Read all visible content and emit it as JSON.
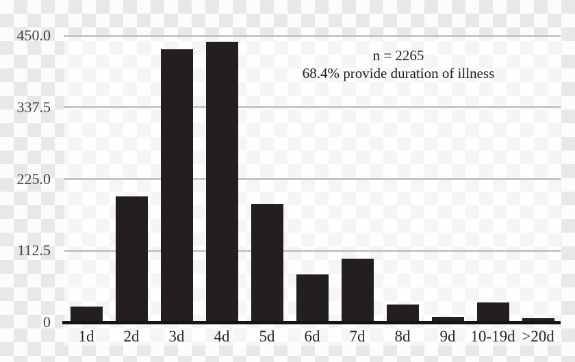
{
  "chart_data": {
    "type": "bar",
    "title": "",
    "xlabel": "",
    "ylabel": "",
    "categories": [
      "1d",
      "2d",
      "3d",
      "4d",
      "5d",
      "6d",
      "7d",
      "8d",
      "9d",
      "10-19d",
      ">20d"
    ],
    "values": [
      24,
      197,
      427,
      439,
      185,
      74,
      99,
      27,
      8,
      30,
      5
    ],
    "ylim": [
      0,
      450
    ],
    "yticks": [
      {
        "value": 450,
        "label": "450.0"
      },
      {
        "value": 337.5,
        "label": "337.5"
      },
      {
        "value": 225,
        "label": "225.0"
      },
      {
        "value": 112.5,
        "label": "112.5"
      },
      {
        "value": 0,
        "label": "0"
      }
    ],
    "grid": "horizontal-only",
    "legend": "none",
    "annotations": {
      "line1": "n = 2265",
      "line2": "68.4% provide duration of illness"
    },
    "colors": {
      "bar": "#231f20",
      "gridline": "#c6c6c6",
      "axis": "#161314",
      "ytick_text": "#3f3f3f",
      "xtick_text": "#262626",
      "annotation_text": "#1c1c1c",
      "checker_gray": "#e8e8e8",
      "checker_white": "#fcfcfc"
    }
  }
}
